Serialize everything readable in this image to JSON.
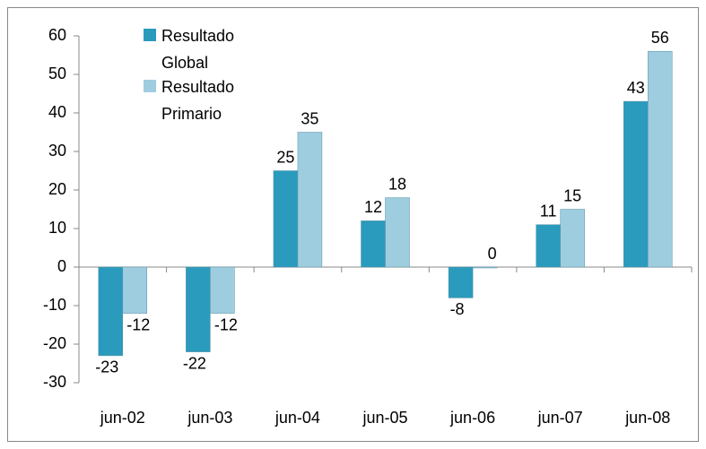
{
  "chart_data": {
    "type": "bar",
    "categories": [
      "jun-02",
      "jun-03",
      "jun-04",
      "jun-05",
      "jun-06",
      "jun-07",
      "jun-08"
    ],
    "series": [
      {
        "name": "Resultado Global",
        "color": "#2a9bbd",
        "values": [
          -23,
          -22,
          25,
          12,
          -8,
          11,
          43
        ]
      },
      {
        "name": "Resultado Primario",
        "color": "#9fcde0",
        "values": [
          -12,
          -12,
          35,
          18,
          0,
          15,
          56
        ]
      }
    ],
    "ylim": [
      -30,
      60
    ],
    "yticks": [
      -30,
      -20,
      -10,
      0,
      10,
      20,
      30,
      40,
      50,
      60
    ],
    "grid": false,
    "legend": "top-left"
  }
}
